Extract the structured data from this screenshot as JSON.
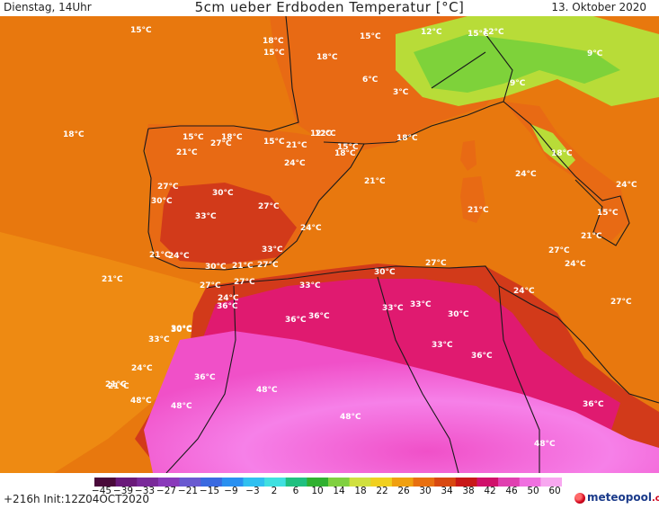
{
  "header": {
    "left": "Dienstag, 14Uhr",
    "title": "5cm ueber Erdboden Temperatur [°C]",
    "right": "13. Oktober 2020"
  },
  "footer": {
    "run": "+216h  Init:12Z04OCT2020",
    "logo": "meteopool",
    "logo_suffix": ".org"
  },
  "colorbar": {
    "ticks": [
      "−45",
      "−39",
      "−33",
      "−27",
      "−21",
      "−15",
      "−9",
      "−3",
      "2",
      "6",
      "10",
      "14",
      "18",
      "22",
      "26",
      "30",
      "34",
      "38",
      "42",
      "46",
      "50",
      "60"
    ],
    "colors": [
      "#4a0a3a",
      "#6a1a7a",
      "#7a2a9a",
      "#8a3aba",
      "#6a5ad0",
      "#3a6ae0",
      "#2a90f0",
      "#30c0f0",
      "#40e0e0",
      "#20c080",
      "#30b030",
      "#80d040",
      "#d0e040",
      "#f0d020",
      "#f0a010",
      "#e87010",
      "#d84810",
      "#c81818",
      "#d0106a",
      "#e040b0",
      "#f070e0",
      "#f8a8f0"
    ]
  },
  "map": {
    "colors": {
      "sea": "#e8780e",
      "warm_sea": "#ee8a12",
      "land_north": "#e86a14",
      "alps_cool": "#7ed23a",
      "alps_mid": "#b8dc38",
      "spain_hot": "#d23a1a",
      "africa_hot": "#e01a70",
      "sahara": "#f050c8",
      "sahara_far": "#f680e8",
      "border": "#1a1a1a"
    },
    "labels": [
      "15°C",
      "18°C",
      "15°C",
      "18°C",
      "15°C",
      "12°C",
      "15°C",
      "12°C",
      "9°C",
      "6°C",
      "3°C",
      "9°C",
      "18°C",
      "15°C",
      "21°C",
      "15°C",
      "12°C",
      "27°C",
      "18°C",
      "21°C",
      "24°C",
      "27°C",
      "30°C",
      "33°C",
      "30°C",
      "27°C",
      "24°C",
      "33°C",
      "21°C",
      "24°C",
      "30°C",
      "21°C",
      "27°C",
      "21°C",
      "24°C",
      "27°C",
      "30°C",
      "36°C",
      "33°C",
      "36°C",
      "33°C",
      "30°C",
      "24°C",
      "21°C",
      "48°C",
      "48°C",
      "48°C",
      "36°C",
      "36°C",
      "33°C",
      "33°C",
      "30°C",
      "27°C",
      "36°C",
      "48°C",
      "33°C",
      "48°C",
      "36°C",
      "12°C",
      "18°C",
      "18°C",
      "21°C",
      "24°C",
      "18°C",
      "15°C",
      "21°C",
      "24°C",
      "24°C",
      "30°C",
      "24°C",
      "27°C",
      "27°C",
      "21°C",
      "21°C",
      "15°C",
      "27°C"
    ]
  }
}
